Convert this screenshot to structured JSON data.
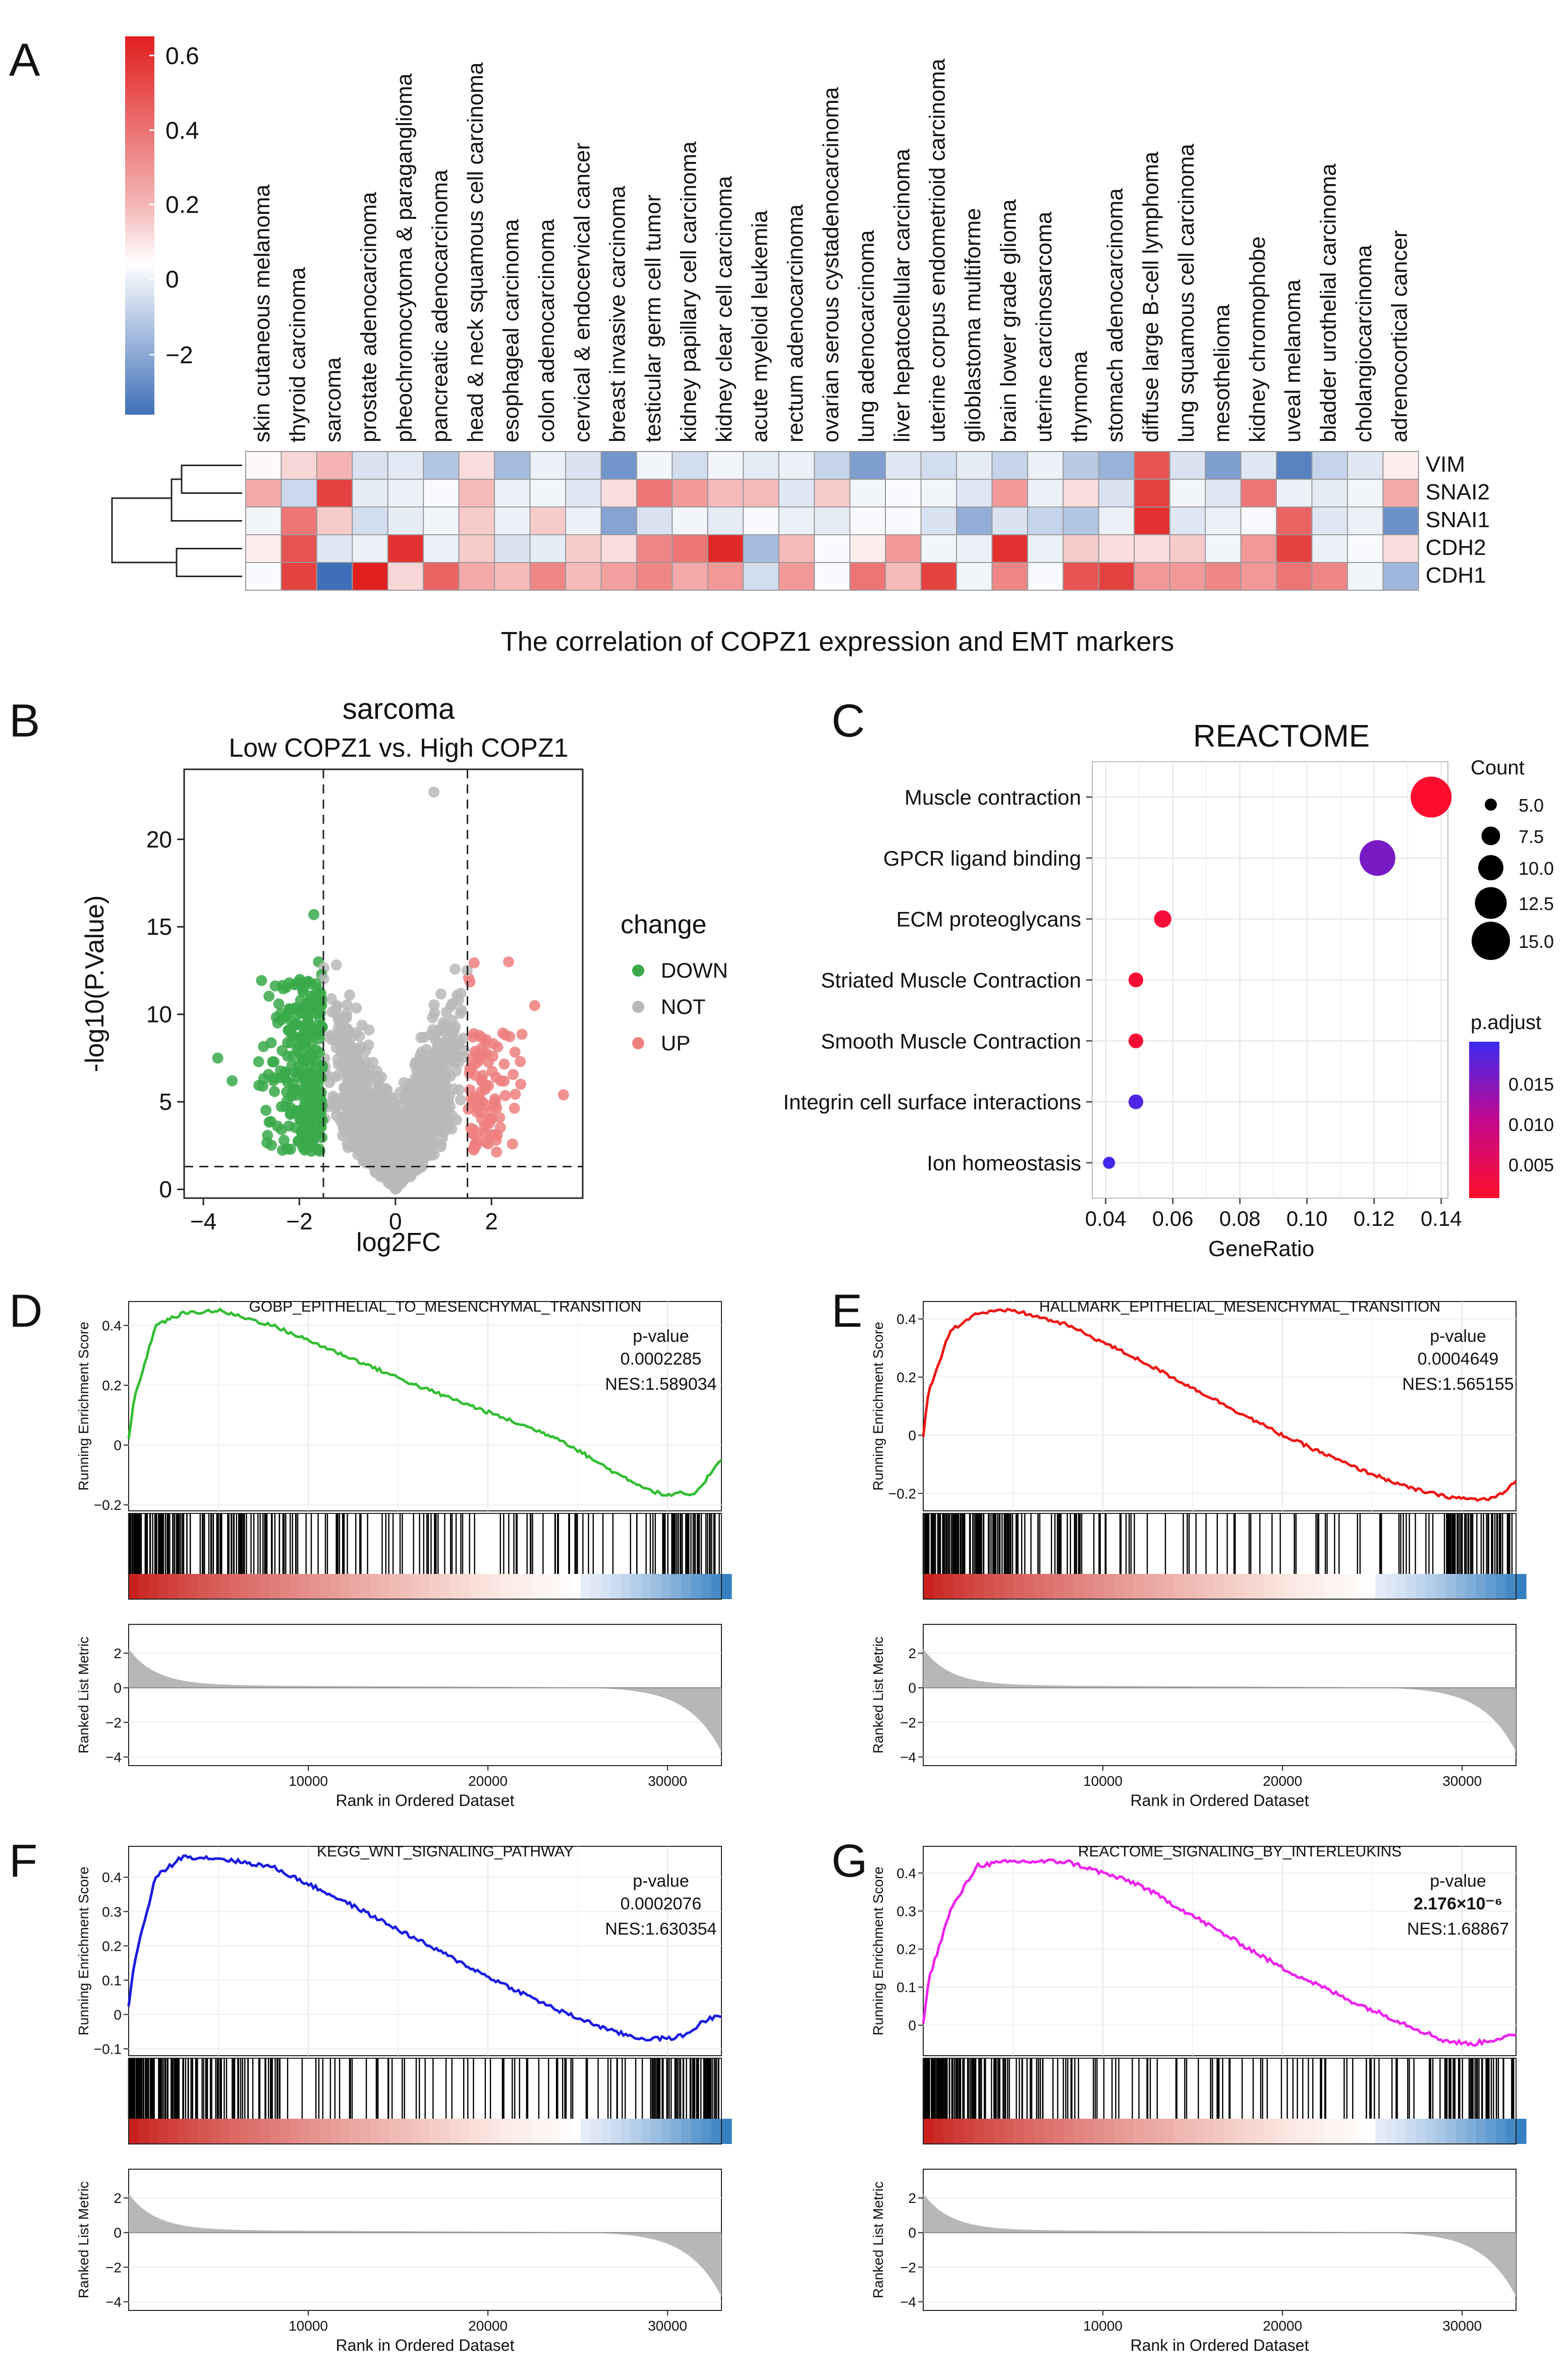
{
  "panels": [
    "A",
    "B",
    "C",
    "D",
    "E",
    "F",
    "G"
  ],
  "heatmap": {
    "cancers": [
      "skin cutaneous melanoma",
      "thyroid carcinoma",
      "sarcoma",
      "prostate adenocarcinoma",
      "pheochromocytoma & paraganglioma",
      "pancreatic adenocarcinoma",
      "head & neck squamous cell carcinoma",
      "esophageal carcinoma",
      "colon adenocarcinoma",
      "cervical & endocervical cancer",
      "breast invasive carcinoma",
      "testicular germ cell tumor",
      "kidney papillary cell carcinoma",
      "kidney clear cell carcinoma",
      "acute myeloid leukemia",
      "rectum adenocarcinoma",
      "ovarian serous cystadenocarcinoma",
      "lung adenocarcinoma",
      "liver hepatocellular carcinoma",
      "uterine corpus endometrioid carcinoma",
      "glioblastoma multiforme",
      "brain lower grade glioma",
      "uterine carcinosarcoma",
      "thymoma",
      "stomach adenocarcinoma",
      "diffuse large B-cell lymphoma",
      "lung squamous cell carcinoma",
      "mesothelioma",
      "kidney chromophobe",
      "uveal melanoma",
      "bladder urothelial carcinoma",
      "cholangiocarcinoma",
      "adrenocortical cancer"
    ],
    "highlight": "sarcoma",
    "markers": [
      "VIM",
      "SNAI2",
      "SNAI1",
      "CDH2",
      "CDH1"
    ],
    "values": [
      [
        0.02,
        0.12,
        0.22,
        -0.6,
        -0.45,
        -1.2,
        0.1,
        -1.4,
        -0.3,
        -0.6,
        -2.2,
        -0.2,
        -0.7,
        -0.2,
        -0.4,
        -0.3,
        -0.9,
        -2.0,
        -0.5,
        -0.7,
        -0.4,
        -0.9,
        -0.3,
        -1.1,
        -1.6,
        0.5,
        -0.6,
        -2.0,
        -0.5,
        -2.6,
        -0.9,
        -0.5,
        0.05
      ],
      [
        0.25,
        -0.8,
        0.55,
        -0.4,
        -0.3,
        -0.1,
        0.2,
        -0.3,
        -0.2,
        -0.5,
        0.1,
        0.4,
        0.3,
        0.2,
        0.2,
        -0.5,
        0.15,
        -0.2,
        -0.1,
        -0.2,
        -0.5,
        0.3,
        -0.3,
        0.1,
        -0.6,
        0.55,
        -0.2,
        -0.5,
        0.4,
        -0.3,
        -0.4,
        -0.2,
        0.25
      ],
      [
        -0.2,
        0.4,
        0.15,
        -0.7,
        -0.4,
        -0.2,
        0.15,
        -0.3,
        0.15,
        -0.3,
        -1.9,
        -0.6,
        -0.2,
        -0.4,
        -0.1,
        -0.3,
        -0.4,
        -0.1,
        -0.1,
        -0.6,
        -1.7,
        -0.6,
        -0.9,
        -1.2,
        -0.3,
        0.6,
        -0.5,
        -0.3,
        -0.1,
        0.45,
        -0.5,
        -0.3,
        -2.3
      ],
      [
        0.05,
        0.5,
        -0.5,
        -0.3,
        0.6,
        -0.3,
        0.15,
        -0.6,
        -0.4,
        0.15,
        0.1,
        0.35,
        0.4,
        0.62,
        -1.4,
        0.2,
        -0.1,
        0.05,
        0.3,
        -0.2,
        -0.3,
        0.6,
        -0.3,
        0.15,
        0.1,
        0.1,
        0.15,
        -0.2,
        0.3,
        0.55,
        -0.3,
        -0.1,
        0.1
      ],
      [
        -0.1,
        0.55,
        -3.0,
        0.65,
        0.12,
        0.45,
        0.25,
        0.2,
        0.35,
        0.2,
        0.28,
        0.35,
        0.25,
        0.3,
        -0.7,
        0.3,
        -0.1,
        0.4,
        0.2,
        0.55,
        -0.2,
        0.35,
        -0.1,
        0.5,
        0.55,
        0.3,
        0.3,
        0.35,
        0.3,
        0.4,
        0.35,
        -0.2,
        -1.5
      ]
    ],
    "colorbar_ticks": [
      "0.6",
      "0.4",
      "0.2",
      "0",
      "−2"
    ],
    "caption": "The correlation of COPZ1 expression and EMT markers"
  },
  "volcano": {
    "title": "sarcoma",
    "subtitle": "Low COPZ1 vs. High COPZ1",
    "xlabel": "log2FC",
    "ylabel": "-log10(P.Value)",
    "xticks": [
      "−4",
      "−2",
      "0",
      "2"
    ],
    "yticks": [
      "0",
      "5",
      "10",
      "15",
      "20"
    ],
    "legend_title": "change",
    "legend": [
      {
        "label": "DOWN",
        "color": "#3aa94a"
      },
      {
        "label": "NOT",
        "color": "#b9b9b9"
      },
      {
        "label": "UP",
        "color": "#ee7f7f"
      }
    ]
  },
  "chart_data": [
    {
      "type": "heatmap",
      "title": "The correlation of COPZ1 expression and EMT markers",
      "note": "rows = markers, columns = cancers (see heatmap.values)"
    },
    {
      "type": "scatter",
      "title": "sarcoma",
      "subtitle": "Low COPZ1 vs. High COPZ1",
      "xlabel": "log2FC",
      "ylabel": "-log10(P.Value)",
      "xlim": [
        -4.4,
        3.9
      ],
      "ylim": [
        -0.5,
        24
      ],
      "thresholds": {
        "log2FC": [
          -1.5,
          1.5
        ],
        "neg_log10_p": 1.3
      },
      "highlight_points": [
        {
          "x": 0.8,
          "y": 22.7,
          "group": "NOT"
        },
        {
          "x": -1.7,
          "y": 15.7,
          "group": "DOWN"
        },
        {
          "x": -3.7,
          "y": 7.5,
          "group": "DOWN"
        },
        {
          "x": -3.4,
          "y": 6.2,
          "group": "DOWN"
        },
        {
          "x": 2.9,
          "y": 10.5,
          "group": "UP"
        },
        {
          "x": 3.5,
          "y": 5.4,
          "group": "UP"
        },
        {
          "x": 2.6,
          "y": 7.3,
          "group": "UP"
        }
      ]
    },
    {
      "type": "scatter",
      "title": "REACTOME",
      "xlabel": "GeneRatio",
      "ylabel": "",
      "xlim": [
        0.036,
        0.142
      ],
      "categories": [
        "Muscle contraction",
        "GPCR ligand binding",
        "ECM proteoglycans",
        "Striated Muscle Contraction",
        "Smooth Muscle Contraction",
        "Integrin cell surface interactions",
        "Ion homeostasis"
      ],
      "gene_ratio": [
        0.137,
        0.121,
        0.057,
        0.049,
        0.049,
        0.049,
        0.041
      ],
      "count": [
        16,
        14,
        7,
        6,
        6,
        6,
        5
      ],
      "p_adjust": [
        0.0005,
        0.0155,
        0.0015,
        0.0012,
        0.0012,
        0.0185,
        0.0195
      ],
      "xticks": [
        "0.04",
        "0.06",
        "0.08",
        "0.10",
        "0.12",
        "0.14"
      ],
      "size_legend_title": "Count",
      "size_legend": [
        "5.0",
        "7.5",
        "10.0",
        "12.5",
        "15.0"
      ],
      "color_legend_title": "p.adjust",
      "color_legend": [
        "0.015",
        "0.010",
        "0.005"
      ]
    },
    {
      "type": "line",
      "title": "GOBP_EPITHELIAL_TO_MESENCHYMAL_TRANSITION",
      "ylabel": "Running Enrichment Score",
      "xlabel": "Rank in Ordered Dataset",
      "xlim": [
        0,
        33000
      ],
      "ylim": [
        -0.22,
        0.48
      ],
      "curve_x": [
        0,
        300,
        1500,
        3000,
        5000,
        8000,
        12000,
        16000,
        20000,
        24000,
        27000,
        29000,
        30000,
        30800,
        31500,
        32200,
        32900
      ],
      "curve_y": [
        0.02,
        0.15,
        0.4,
        0.44,
        0.45,
        0.4,
        0.3,
        0.2,
        0.11,
        0.02,
        -0.09,
        -0.15,
        -0.17,
        -0.16,
        -0.17,
        -0.11,
        -0.05
      ],
      "pvalue": "0.0002285",
      "NES": "NES:1.589034"
    },
    {
      "type": "line",
      "title": "HALLMARK_EPITHELIAL_MESENCHYMAL_TRANSITION",
      "ylabel": "Running Enrichment Score",
      "xlabel": "Rank in Ordered Dataset",
      "xlim": [
        0,
        33000
      ],
      "ylim": [
        -0.26,
        0.46
      ],
      "curve_x": [
        0,
        300,
        1500,
        3000,
        5000,
        8000,
        12000,
        16000,
        20000,
        24000,
        27000,
        29000,
        30500,
        31500,
        32300,
        32900
      ],
      "curve_y": [
        0.0,
        0.15,
        0.36,
        0.42,
        0.43,
        0.38,
        0.26,
        0.13,
        0.0,
        -0.11,
        -0.18,
        -0.21,
        -0.22,
        -0.22,
        -0.2,
        -0.16
      ],
      "pvalue": "0.0004649",
      "NES": "NES:1.565155"
    },
    {
      "type": "line",
      "title": "KEGG_WNT_SIGNALING_PATHWAY",
      "ylabel": "Running Enrichment Score",
      "xlabel": "Rank in Ordered Dataset",
      "xlim": [
        0,
        33000
      ],
      "ylim": [
        -0.12,
        0.49
      ],
      "curve_x": [
        0,
        300,
        1500,
        3000,
        5000,
        8000,
        12000,
        16000,
        20000,
        24000,
        27000,
        28500,
        30000,
        31000,
        32000,
        32900
      ],
      "curve_y": [
        0.02,
        0.15,
        0.4,
        0.46,
        0.455,
        0.43,
        0.33,
        0.22,
        0.11,
        0.01,
        -0.05,
        -0.07,
        -0.07,
        -0.06,
        -0.02,
        0.0
      ],
      "pvalue": "0.0002076",
      "NES": "NES:1.630354"
    },
    {
      "type": "line",
      "title": "REACTOME_SIGNALING_BY_INTERLEUKINS",
      "ylabel": "Running Enrichment Score",
      "xlabel": "Rank in Ordered Dataset",
      "xlim": [
        0,
        33000
      ],
      "ylim": [
        -0.08,
        0.47
      ],
      "curve_x": [
        0,
        300,
        1500,
        3000,
        5000,
        8000,
        12000,
        16000,
        20000,
        24000,
        27000,
        29000,
        30500,
        31500,
        32500,
        32900
      ],
      "curve_y": [
        0.0,
        0.12,
        0.3,
        0.42,
        0.43,
        0.43,
        0.37,
        0.26,
        0.15,
        0.06,
        0.0,
        -0.04,
        -0.05,
        -0.04,
        -0.03,
        -0.03
      ],
      "pvalue": "2.176×10⁻⁶",
      "NES": "NES:1.68867"
    }
  ],
  "gsea_common": {
    "pvalue_label": "p-value",
    "ylabel": "Running Enrichment Score",
    "ylabel2": "Ranked List Metric",
    "xlabel": "Rank in Ordered Dataset",
    "xticks": [
      "10000",
      "20000",
      "30000"
    ],
    "metric_ticks": [
      "2",
      "0",
      "−2",
      "−4"
    ]
  },
  "gsea_ticks": {
    "D": [
      "0.4",
      "0.2",
      "0",
      "−0.2"
    ],
    "E": [
      "0.4",
      "0.2",
      "0",
      "−0.2"
    ],
    "F": [
      "0.4",
      "0.3",
      "0.2",
      "0.1",
      "0",
      "−0.1"
    ],
    "G": [
      "0.4",
      "0.3",
      "0.2",
      "0.1",
      "0"
    ]
  },
  "gsea_colors": {
    "D": "#33bd33",
    "E": "#ee1515",
    "F": "#1a1ae0",
    "G": "#ee22ee"
  }
}
